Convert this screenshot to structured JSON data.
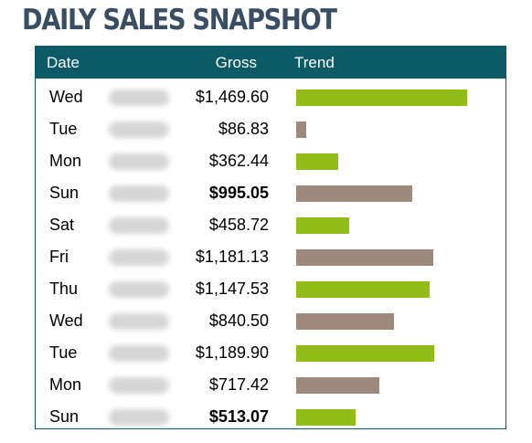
{
  "page": {
    "title": "DAILY SALES SNAPSHOT"
  },
  "table": {
    "headers": {
      "date": "Date",
      "gross": "Gross",
      "trend": "Trend"
    }
  },
  "colors": {
    "header_bg": "#0b5b66",
    "bar_green": "#92bd18",
    "bar_taupe": "#9d8a7d",
    "title": "#3a4e63"
  },
  "chart_data": {
    "type": "table",
    "columns": [
      "Date",
      "Gross",
      "Trend"
    ],
    "rows": [
      {
        "day": "Wed",
        "gross": "$1,469.60",
        "value": 1469.6,
        "bold": false,
        "bar_color": "green"
      },
      {
        "day": "Tue",
        "gross": "$86.83",
        "value": 86.83,
        "bold": false,
        "bar_color": "taupe"
      },
      {
        "day": "Mon",
        "gross": "$362.44",
        "value": 362.44,
        "bold": false,
        "bar_color": "green"
      },
      {
        "day": "Sun",
        "gross": "$995.05",
        "value": 995.05,
        "bold": true,
        "bar_color": "taupe"
      },
      {
        "day": "Sat",
        "gross": "$458.72",
        "value": 458.72,
        "bold": false,
        "bar_color": "green"
      },
      {
        "day": "Fri",
        "gross": "$1,181.13",
        "value": 1181.13,
        "bold": false,
        "bar_color": "taupe"
      },
      {
        "day": "Thu",
        "gross": "$1,147.53",
        "value": 1147.53,
        "bold": false,
        "bar_color": "green"
      },
      {
        "day": "Wed",
        "gross": "$840.50",
        "value": 840.5,
        "bold": false,
        "bar_color": "taupe"
      },
      {
        "day": "Tue",
        "gross": "$1,189.90",
        "value": 1189.9,
        "bold": false,
        "bar_color": "green"
      },
      {
        "day": "Mon",
        "gross": "$717.42",
        "value": 717.42,
        "bold": false,
        "bar_color": "taupe"
      },
      {
        "day": "Sun",
        "gross": "$513.07",
        "value": 513.07,
        "bold": true,
        "bar_color": "green"
      }
    ]
  }
}
